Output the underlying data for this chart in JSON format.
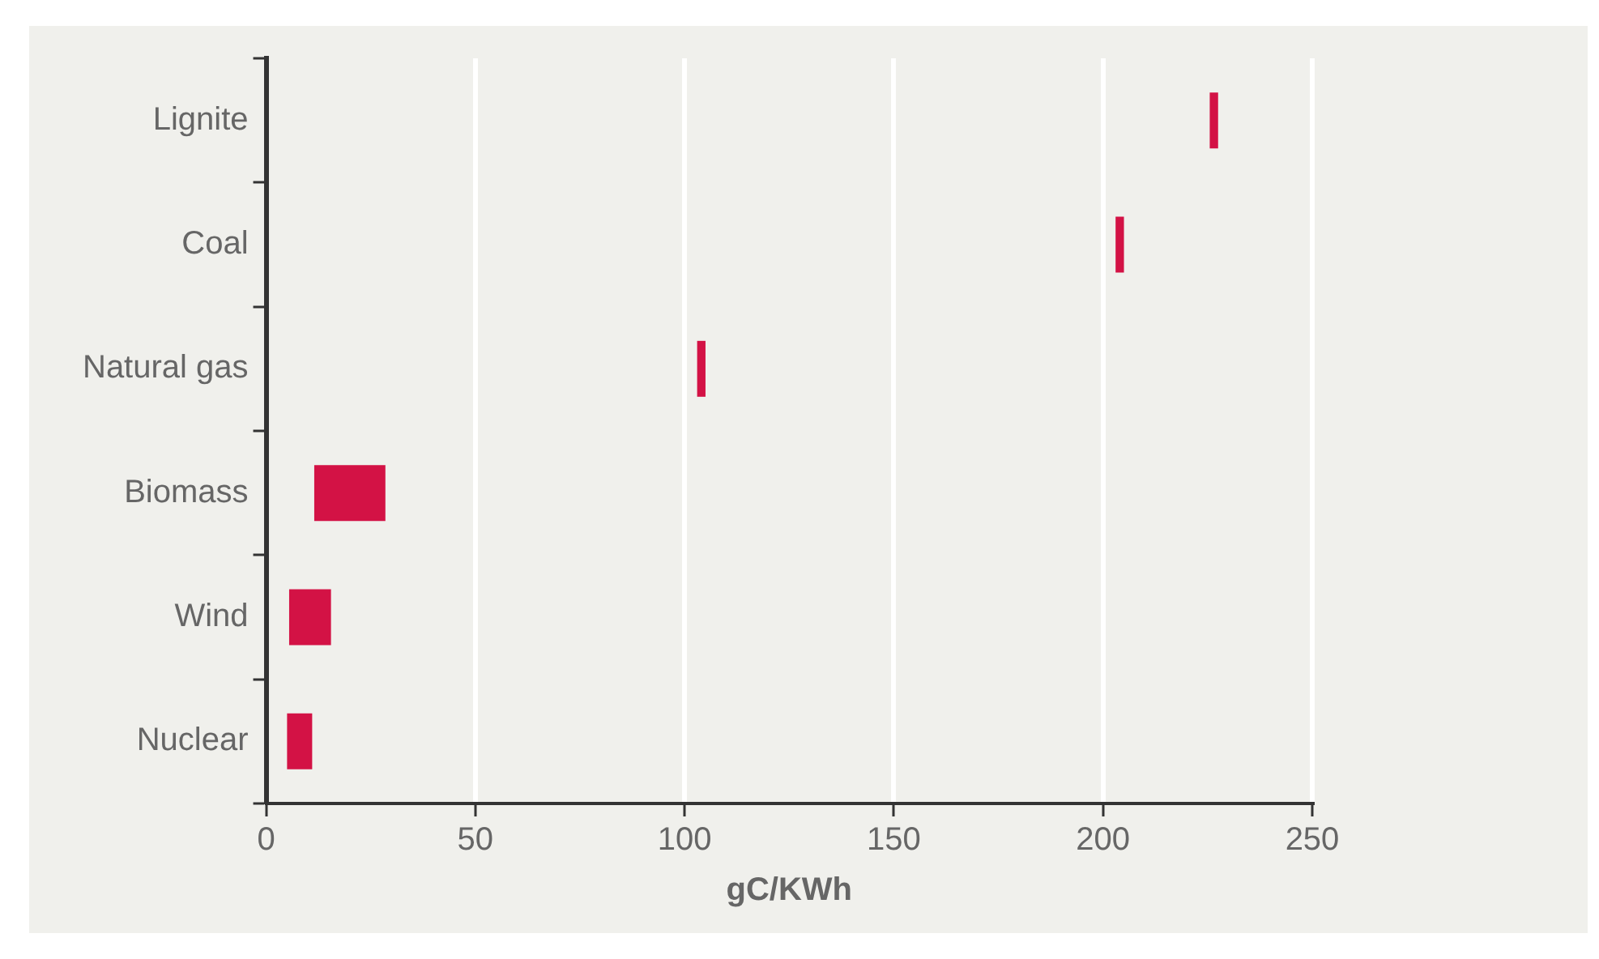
{
  "chart_data": {
    "type": "bar",
    "orientation": "horizontal",
    "xlabel": "gC/KWh",
    "categories": [
      "Lignite",
      "Coal",
      "Natural gas",
      "Biomass",
      "Wind",
      "Nuclear"
    ],
    "base": [
      225.5,
      203,
      103,
      11.5,
      5.5,
      5
    ],
    "values": [
      2,
      2,
      2,
      17,
      10,
      6
    ],
    "color": "#d31245",
    "xlim": [
      0,
      250
    ],
    "xticks": [
      0,
      50,
      100,
      150,
      200,
      250
    ],
    "grid": "x"
  }
}
